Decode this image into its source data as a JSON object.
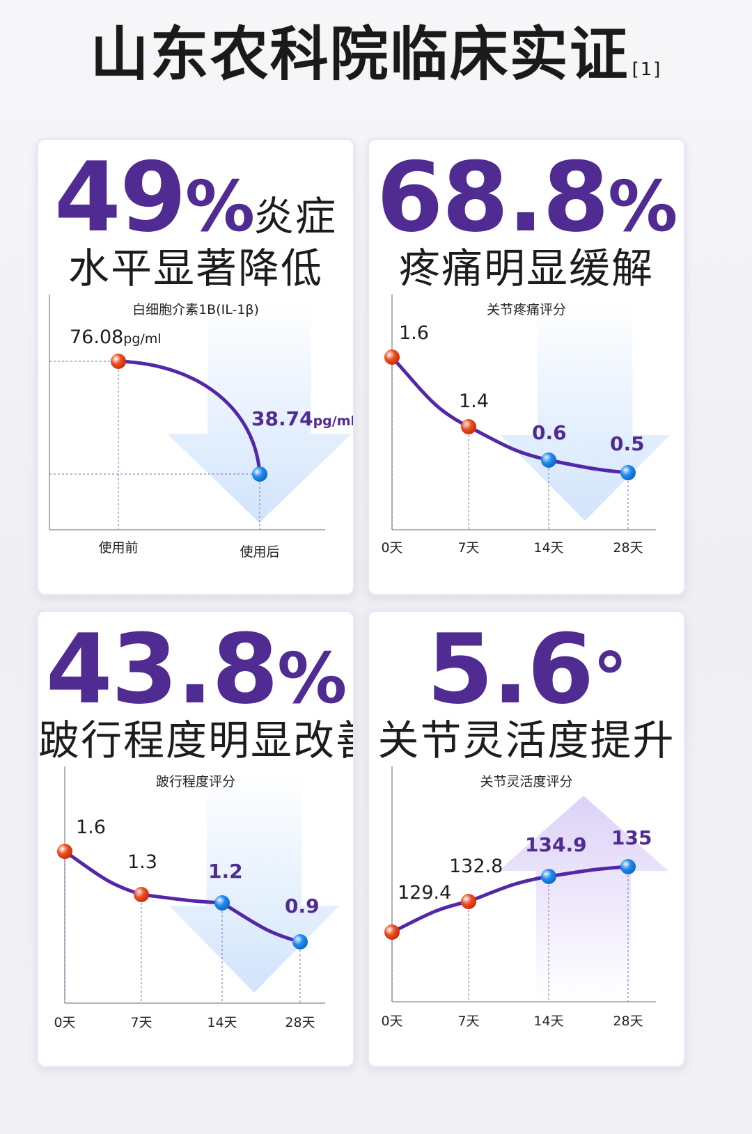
{
  "page": {
    "title": "山东农科院临床实证",
    "footnote": "[1]"
  },
  "colors": {
    "purple": "#4f2b92",
    "line": "#5427a8",
    "orange": "#f05020",
    "blue": "#1f8ff0",
    "arrow_down": "#cfe3fb",
    "arrow_up": "#d9cdf6"
  },
  "cards": [
    {
      "big_num": "49",
      "big_unit": "%",
      "big_suffix": "炎症",
      "subtitle": "水平显著降低"
    },
    {
      "big_num": "68.8",
      "big_unit": "%",
      "big_suffix": "",
      "subtitle": "疼痛明显缓解"
    },
    {
      "big_num": "43.8",
      "big_unit": "%",
      "big_suffix": "",
      "subtitle": "跛行程度明显改善"
    },
    {
      "big_num": "5.6",
      "big_unit": "°",
      "big_suffix": "",
      "subtitle": "关节灵活度提升"
    }
  ],
  "chart_data": [
    {
      "type": "line",
      "title": "白细胞介素1B(IL-1β)",
      "categories": [
        "使用前",
        "使用后"
      ],
      "values": [
        76.08,
        38.74
      ],
      "unit": "pg/ml",
      "point_labels": [
        [
          "76.08",
          "pg/ml"
        ],
        [
          "38.74",
          "pg/ml"
        ]
      ],
      "label_highlight": [
        false,
        true
      ],
      "trend": "down"
    },
    {
      "type": "line",
      "title": "关节疼痛评分",
      "categories": [
        "0天",
        "7天",
        "14天",
        "28天"
      ],
      "values": [
        1.6,
        1.4,
        0.6,
        0.5
      ],
      "point_labels": [
        [
          "1.6",
          ""
        ],
        [
          "1.4",
          ""
        ],
        [
          "0.6",
          ""
        ],
        [
          "0.5",
          ""
        ]
      ],
      "label_highlight": [
        false,
        false,
        true,
        true
      ],
      "trend": "down"
    },
    {
      "type": "line",
      "title": "跛行程度评分",
      "categories": [
        "0天",
        "7天",
        "14天",
        "28天"
      ],
      "values": [
        1.6,
        1.3,
        1.2,
        0.9
      ],
      "point_labels": [
        [
          "1.6",
          ""
        ],
        [
          "1.3",
          ""
        ],
        [
          "1.2",
          ""
        ],
        [
          "0.9",
          ""
        ]
      ],
      "label_highlight": [
        false,
        false,
        true,
        true
      ],
      "trend": "down"
    },
    {
      "type": "line",
      "title": "关节灵活度评分",
      "categories": [
        "0天",
        "7天",
        "14天",
        "28天"
      ],
      "values": [
        129.4,
        132.8,
        134.9,
        135
      ],
      "point_labels": [
        [
          "129.4",
          ""
        ],
        [
          "132.8",
          ""
        ],
        [
          "134.9",
          ""
        ],
        [
          "135",
          ""
        ]
      ],
      "label_highlight": [
        false,
        false,
        true,
        true
      ],
      "trend": "up"
    }
  ]
}
